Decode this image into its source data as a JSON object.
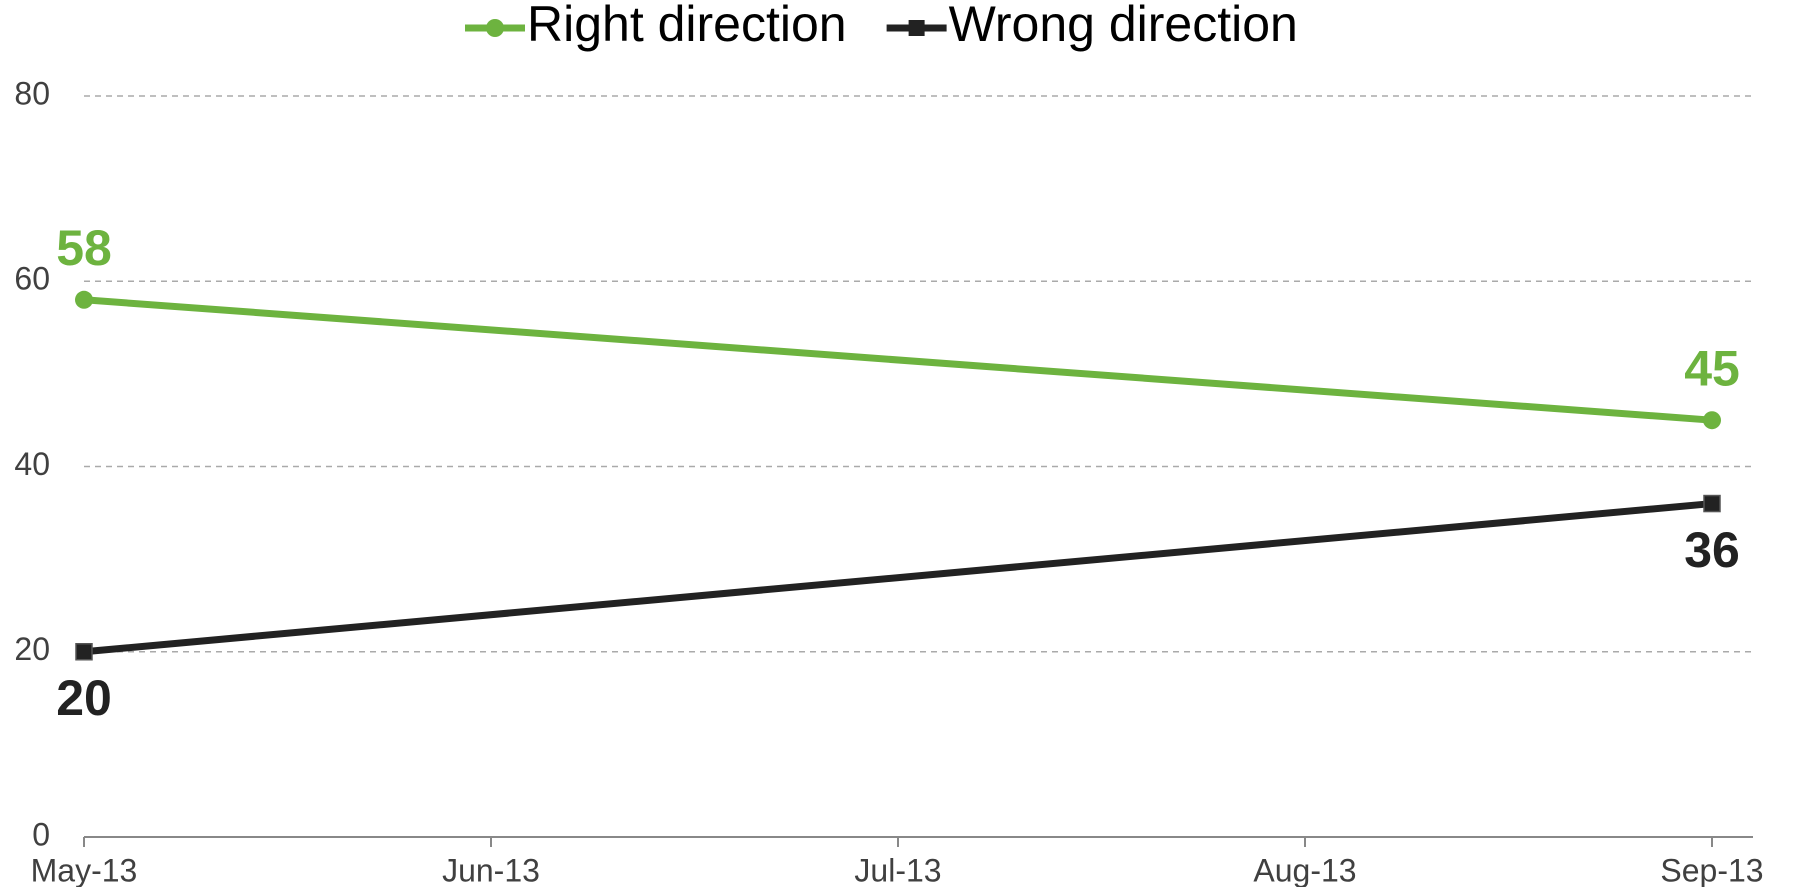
{
  "chart_data": {
    "type": "line",
    "x": [
      "May-13",
      "Sep-13"
    ],
    "xticks": [
      "May-13",
      "Jun-13",
      "Jul-13",
      "Aug-13",
      "Sep-13"
    ],
    "series": [
      {
        "name": "Right direction",
        "color": "#6db33f",
        "marker": "circle",
        "values": [
          58,
          45
        ]
      },
      {
        "name": "Wrong direction",
        "color": "#222222",
        "marker": "square",
        "values": [
          20,
          36
        ]
      }
    ],
    "ylim": [
      0,
      80
    ],
    "yticks": [
      0,
      20,
      40,
      60,
      80
    ],
    "grid": true,
    "legend": "top"
  }
}
